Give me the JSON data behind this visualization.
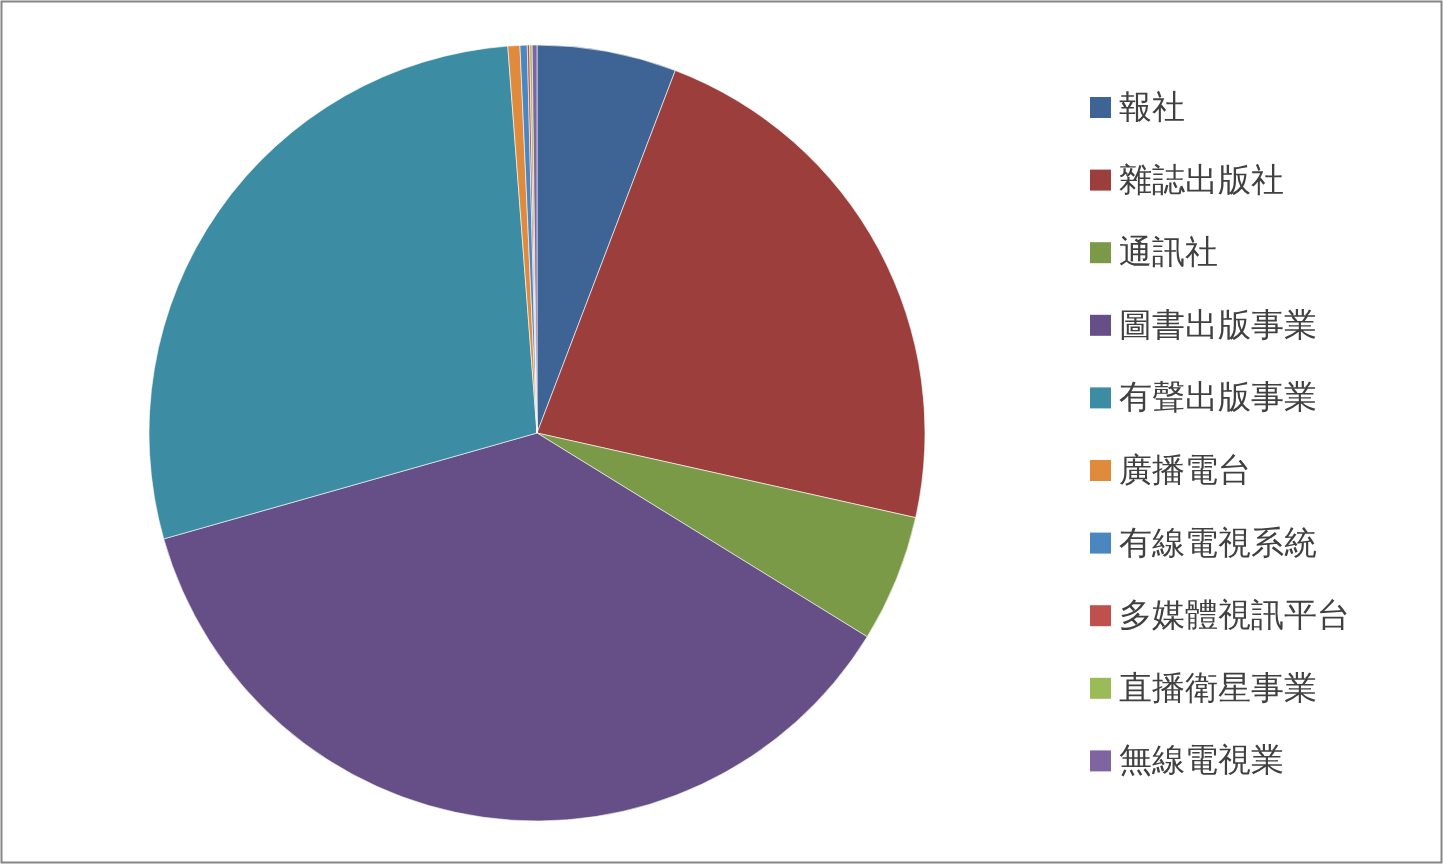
{
  "chart_data": {
    "type": "pie",
    "categories": [
      "報社",
      "雜誌出版社",
      "通訊社",
      "圖書出版事業",
      "有聲出版事業",
      "廣播電台",
      "有線電視系統",
      "多媒體視訊平台",
      "直播衛星事業",
      "無線電視業"
    ],
    "values": [
      5.8,
      22.7,
      5.3,
      36.8,
      28.2,
      0.5,
      0.3,
      0.1,
      0.1,
      0.2
    ],
    "colors": [
      "#3e6496",
      "#9c3f3c",
      "#7a9a47",
      "#664e86",
      "#3c8ca3",
      "#e08a3c",
      "#4a86c0",
      "#c0504d",
      "#9bbb59",
      "#8064a2"
    ],
    "legend": "right"
  }
}
